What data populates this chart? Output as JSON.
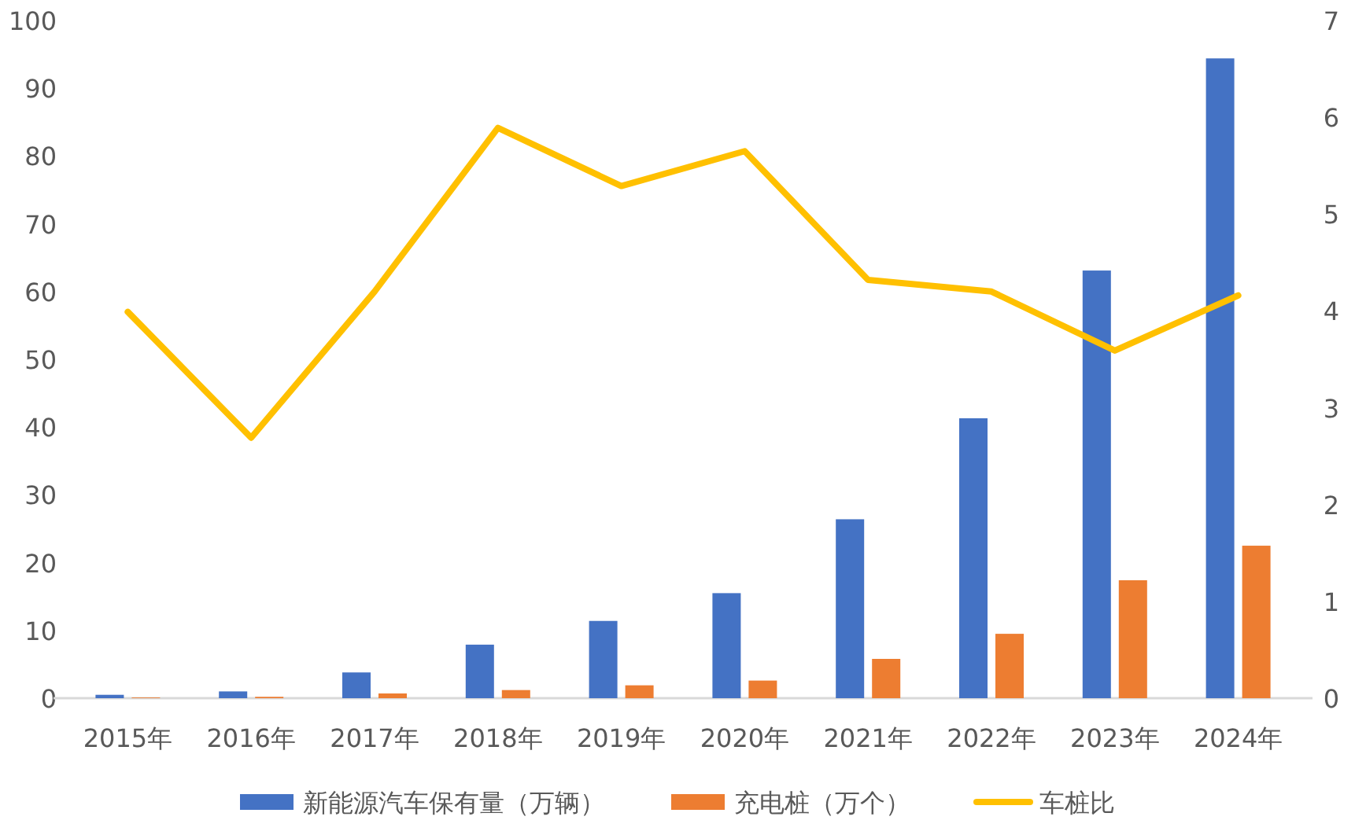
{
  "chart_data": {
    "type": "bar",
    "categories": [
      "2015年",
      "2016年",
      "2017年",
      "2018年",
      "2019年",
      "2020年",
      "2021年",
      "2022年",
      "2023年",
      "2024年"
    ],
    "series": [
      {
        "name": "新能源汽车保有量（万辆）",
        "color": "#4472c4",
        "values": [
          0.5,
          1.0,
          3.8,
          7.9,
          11.4,
          15.5,
          26.4,
          41.3,
          63.1,
          94.4
        ]
      },
      {
        "name": "充电桩（万个）",
        "color": "#ed7d31",
        "values": [
          0.1,
          0.2,
          0.7,
          1.2,
          1.9,
          2.6,
          5.8,
          9.5,
          17.4,
          22.5
        ]
      },
      {
        "name": "车桩比",
        "color": "#ffc000",
        "type": "line",
        "axis": "y2",
        "values": [
          3.99,
          2.69,
          4.2,
          5.89,
          5.29,
          5.65,
          4.32,
          4.2,
          3.59,
          4.16
        ]
      }
    ],
    "ylim": [
      0,
      100
    ],
    "yticks": [
      0,
      10,
      20,
      30,
      40,
      50,
      60,
      70,
      80,
      90,
      100
    ],
    "y2lim": [
      0,
      7
    ],
    "y2ticks": [
      0,
      1,
      2,
      3,
      4,
      5,
      6,
      7
    ],
    "legend": "bottom"
  }
}
